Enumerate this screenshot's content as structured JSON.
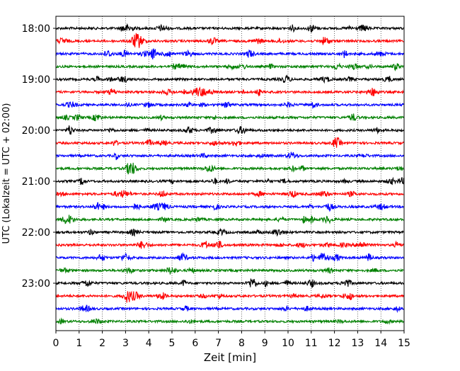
{
  "chart_data": {
    "type": "line",
    "title": "",
    "xlabel": "Zeit  [min]",
    "ylabel": "UTC (Lokalzeit = UTC + 02:00)",
    "xlim": [
      0,
      15
    ],
    "x_ticks": [
      "0",
      "1",
      "2",
      "3",
      "4",
      "5",
      "6",
      "7",
      "8",
      "9",
      "10",
      "11",
      "12",
      "13",
      "14",
      "15"
    ],
    "y_tick_labels": [
      "18:00",
      "19:00",
      "20:00",
      "21:00",
      "22:00",
      "23:00"
    ],
    "grid": "vertical dotted at each minute",
    "line_colors": [
      "#000000",
      "#ff0000",
      "#0000ff",
      "#008000"
    ],
    "series": [
      {
        "start": "18:00",
        "color": "#000000"
      },
      {
        "start": "18:15",
        "color": "#ff0000"
      },
      {
        "start": "18:30",
        "color": "#0000ff"
      },
      {
        "start": "18:45",
        "color": "#008000"
      },
      {
        "start": "19:00",
        "color": "#000000"
      },
      {
        "start": "19:15",
        "color": "#ff0000"
      },
      {
        "start": "19:30",
        "color": "#0000ff"
      },
      {
        "start": "19:45",
        "color": "#008000"
      },
      {
        "start": "20:00",
        "color": "#000000"
      },
      {
        "start": "20:15",
        "color": "#ff0000"
      },
      {
        "start": "20:30",
        "color": "#0000ff"
      },
      {
        "start": "20:45",
        "color": "#008000"
      },
      {
        "start": "21:00",
        "color": "#000000"
      },
      {
        "start": "21:15",
        "color": "#ff0000"
      },
      {
        "start": "21:30",
        "color": "#0000ff"
      },
      {
        "start": "21:45",
        "color": "#008000"
      },
      {
        "start": "22:00",
        "color": "#000000"
      },
      {
        "start": "22:15",
        "color": "#ff0000"
      },
      {
        "start": "22:30",
        "color": "#0000ff"
      },
      {
        "start": "22:45",
        "color": "#008000"
      },
      {
        "start": "23:00",
        "color": "#000000"
      },
      {
        "start": "23:15",
        "color": "#ff0000"
      },
      {
        "start": "23:30",
        "color": "#0000ff"
      },
      {
        "start": "23:45",
        "color": "#008000"
      }
    ],
    "events": [
      {
        "trace_start": "18:15",
        "minute": 3.5,
        "amplitude": "large"
      }
    ]
  }
}
